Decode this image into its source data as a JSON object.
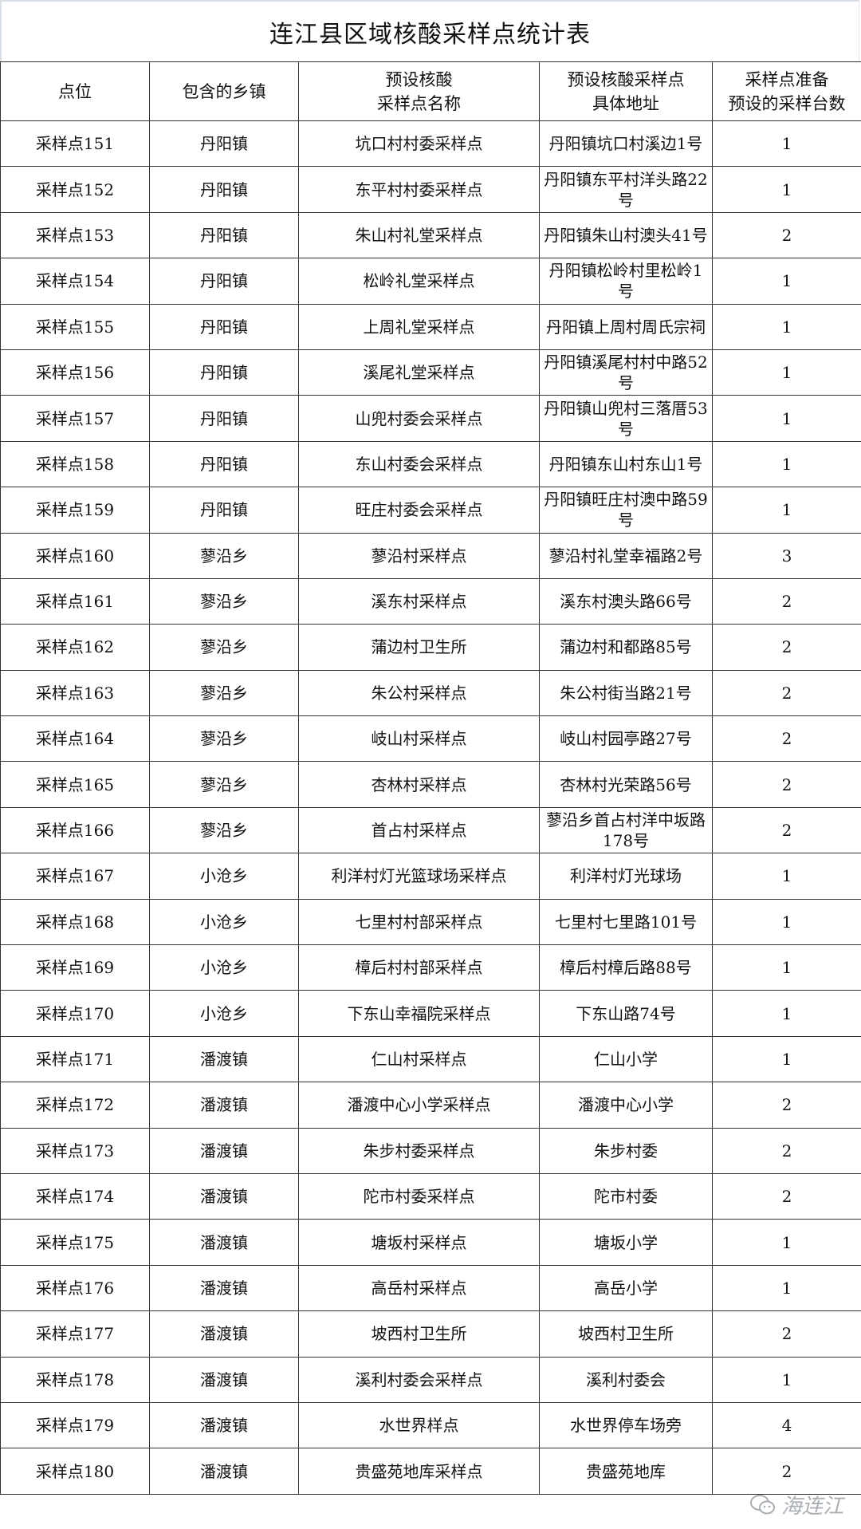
{
  "title": "连江县区域核酸采样点统计表",
  "columns": [
    "点位",
    "包含的乡镇",
    "预设核酸\n采样点名称",
    "预设核酸采样点\n具体地址",
    "采样点准备\n预设的采样台数"
  ],
  "rows": [
    [
      "采样点151",
      "丹阳镇",
      "坑口村村委采样点",
      "丹阳镇坑口村溪边1号",
      "1"
    ],
    [
      "采样点152",
      "丹阳镇",
      "东平村村委采样点",
      "丹阳镇东平村洋头路22号",
      "1"
    ],
    [
      "采样点153",
      "丹阳镇",
      "朱山村礼堂采样点",
      "丹阳镇朱山村澳头41号",
      "2"
    ],
    [
      "采样点154",
      "丹阳镇",
      "松岭礼堂采样点",
      "丹阳镇松岭村里松岭1号",
      "1"
    ],
    [
      "采样点155",
      "丹阳镇",
      "上周礼堂采样点",
      "丹阳镇上周村周氏宗祠",
      "1"
    ],
    [
      "采样点156",
      "丹阳镇",
      "溪尾礼堂采样点",
      "丹阳镇溪尾村村中路52号",
      "1"
    ],
    [
      "采样点157",
      "丹阳镇",
      "山兜村委会采样点",
      "丹阳镇山兜村三落厝53号",
      "1"
    ],
    [
      "采样点158",
      "丹阳镇",
      "东山村委会采样点",
      "丹阳镇东山村东山1号",
      "1"
    ],
    [
      "采样点159",
      "丹阳镇",
      "旺庄村委会采样点",
      "丹阳镇旺庄村澳中路59号",
      "1"
    ],
    [
      "采样点160",
      "蓼沿乡",
      "蓼沿村采样点",
      "蓼沿村礼堂幸福路2号",
      "3"
    ],
    [
      "采样点161",
      "蓼沿乡",
      "溪东村采样点",
      "溪东村澳头路66号",
      "2"
    ],
    [
      "采样点162",
      "蓼沿乡",
      "蒲边村卫生所",
      "蒲边村和都路85号",
      "2"
    ],
    [
      "采样点163",
      "蓼沿乡",
      "朱公村采样点",
      "朱公村街当路21号",
      "2"
    ],
    [
      "采样点164",
      "蓼沿乡",
      "岐山村采样点",
      "岐山村园亭路27号",
      "2"
    ],
    [
      "采样点165",
      "蓼沿乡",
      "杏林村采样点",
      "杏林村光荣路56号",
      "2"
    ],
    [
      "采样点166",
      "蓼沿乡",
      "首占村采样点",
      "蓼沿乡首占村洋中坂路178号",
      "2"
    ],
    [
      "采样点167",
      "小沧乡",
      "利洋村灯光篮球场采样点",
      "利洋村灯光球场",
      "1"
    ],
    [
      "采样点168",
      "小沧乡",
      "七里村村部采样点",
      "七里村七里路101号",
      "1"
    ],
    [
      "采样点169",
      "小沧乡",
      "樟后村村部采样点",
      "樟后村樟后路88号",
      "1"
    ],
    [
      "采样点170",
      "小沧乡",
      "下东山幸福院采样点",
      "下东山路74号",
      "1"
    ],
    [
      "采样点171",
      "潘渡镇",
      "仁山村采样点",
      "仁山小学",
      "1"
    ],
    [
      "采样点172",
      "潘渡镇",
      "潘渡中心小学采样点",
      "潘渡中心小学",
      "2"
    ],
    [
      "采样点173",
      "潘渡镇",
      "朱步村委采样点",
      "朱步村委",
      "2"
    ],
    [
      "采样点174",
      "潘渡镇",
      "陀市村委采样点",
      "陀市村委",
      "2"
    ],
    [
      "采样点175",
      "潘渡镇",
      "塘坂村采样点",
      "塘坂小学",
      "1"
    ],
    [
      "采样点176",
      "潘渡镇",
      "高岳村采样点",
      "高岳小学",
      "1"
    ],
    [
      "采样点177",
      "潘渡镇",
      "坡西村卫生所",
      "坡西村卫生所",
      "2"
    ],
    [
      "采样点178",
      "潘渡镇",
      "溪利村委会采样点",
      "溪利村委会",
      "1"
    ],
    [
      "采样点179",
      "潘渡镇",
      "水世界样点",
      "水世界停车场旁",
      "4"
    ],
    [
      "采样点180",
      "潘渡镇",
      "贵盛苑地库采样点",
      "贵盛苑地库",
      "2"
    ]
  ],
  "watermark": {
    "text": "海连江",
    "icon": "wechat-icon"
  }
}
